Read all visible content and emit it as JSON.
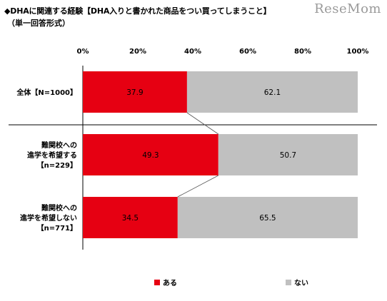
{
  "header": {
    "title": "◆DHAに関連する経験【DHA入りと書かれた商品をつい買ってしまうこと】",
    "subtitle": "（単一回答形式）",
    "watermark": "ReseMom"
  },
  "chart_data": {
    "type": "bar",
    "orientation": "horizontal",
    "stacked": true,
    "percent": true,
    "xlim": [
      0,
      100
    ],
    "x_ticks": [
      "0%",
      "20%",
      "40%",
      "60%",
      "80%",
      "100%"
    ],
    "categories": [
      [
        "全体【N=1000】"
      ],
      [
        "難関校への",
        "進学を希望する",
        "【n=229】"
      ],
      [
        "難関校への",
        "進学を希望しない",
        "【n=771】"
      ]
    ],
    "series": [
      {
        "name": "ある",
        "color": "#e60012",
        "values": [
          37.9,
          49.3,
          34.5
        ],
        "labels": [
          "37.9",
          "49.3",
          "34.5"
        ]
      },
      {
        "name": "ない",
        "color": "#c0c0c0",
        "values": [
          62.1,
          50.7,
          65.5
        ],
        "labels": [
          "62.1",
          "50.7",
          "65.5"
        ]
      }
    ],
    "legend_position": "bottom",
    "grid": false
  }
}
